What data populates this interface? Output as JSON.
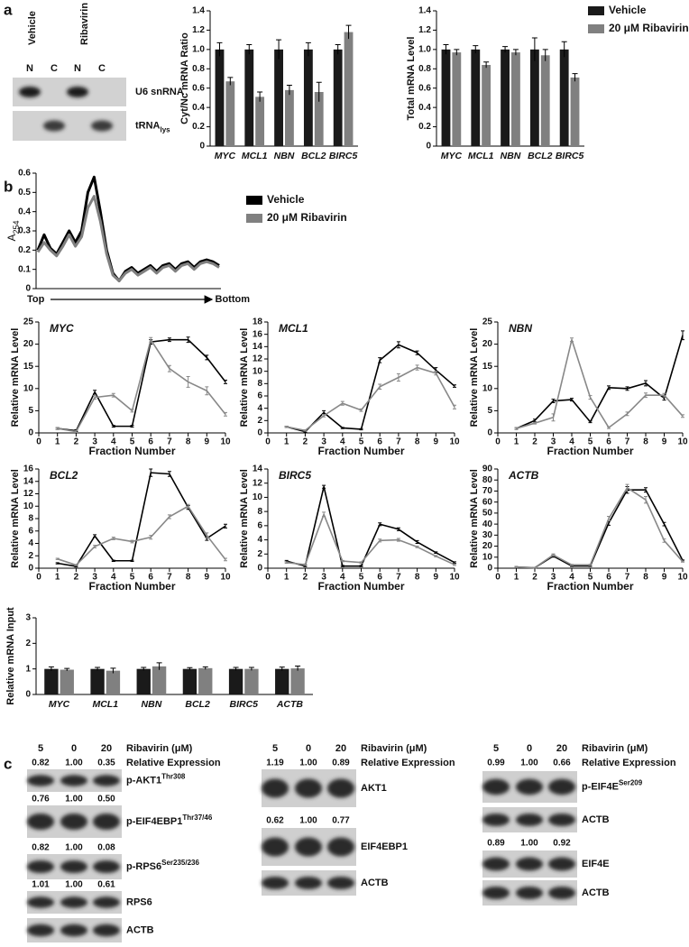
{
  "panel_labels": [
    "a",
    "b",
    "c"
  ],
  "blot_a": {
    "lane_groups": [
      "Vehicle",
      "Ribavirin"
    ],
    "lanes": [
      "N",
      "C",
      "N",
      "C"
    ],
    "rows": [
      {
        "label": "U6 snRNA"
      },
      {
        "label": "tRNA",
        "sub": "lys"
      }
    ]
  },
  "chart_data": [
    {
      "type": "bar",
      "ylabel": "Cyt/Nc mRNA Ratio",
      "categories": [
        "MYC",
        "MCL1",
        "NBN",
        "BCL2",
        "BIRC5"
      ],
      "series": [
        {
          "color": "#1a1a1a",
          "values": [
            1.0,
            1.0,
            1.0,
            1.0,
            1.0
          ],
          "errors": [
            0.07,
            0.05,
            0.1,
            0.07,
            0.05
          ]
        },
        {
          "color": "#808080",
          "values": [
            0.67,
            0.51,
            0.58,
            0.56,
            1.18
          ],
          "errors": [
            0.04,
            0.05,
            0.05,
            0.1,
            0.07
          ]
        }
      ],
      "ylim": [
        0,
        1.4
      ],
      "yticks": [
        0,
        0.2,
        0.4,
        0.6,
        0.8,
        {
          "value": 1,
          "label": "1.0"
        },
        1.2,
        1.4
      ]
    },
    {
      "type": "bar",
      "ylabel": "Total mRNA Level",
      "categories": [
        "MYC",
        "MCL1",
        "NBN",
        "BCL2",
        "BIRC5"
      ],
      "series": [
        {
          "name": "Vehicle",
          "color": "#1a1a1a",
          "values": [
            1.0,
            1.0,
            1.0,
            1.0,
            1.0
          ],
          "errors": [
            0.05,
            0.04,
            0.03,
            0.12,
            0.08
          ]
        },
        {
          "name": "20 μM Ribavirin",
          "color": "#808080",
          "values": [
            0.97,
            0.84,
            0.97,
            0.94,
            0.71
          ],
          "errors": [
            0.03,
            0.03,
            0.03,
            0.06,
            0.04
          ]
        }
      ],
      "ylim": [
        0,
        1.4
      ],
      "yticks": [
        0,
        0.2,
        0.4,
        0.6,
        0.8,
        {
          "value": 1,
          "label": "1.0"
        },
        1.2,
        1.4
      ],
      "legend": "upper right"
    },
    {
      "type": "line",
      "ylabel": "A",
      "ylabel_sub": "254",
      "xlabel_start": "Top",
      "xlabel_end": "Bottom",
      "categories": [
        null,
        null,
        null,
        null,
        null,
        null,
        null,
        null,
        null,
        null,
        null,
        null,
        null,
        null,
        null,
        null,
        null,
        null,
        null,
        null,
        null,
        null,
        null,
        null,
        null,
        null,
        null,
        null,
        null,
        null
      ],
      "series": [
        {
          "name": "Vehicle",
          "color": "#000000",
          "values": [
            0.2,
            0.28,
            0.21,
            0.18,
            0.24,
            0.3,
            0.24,
            0.3,
            0.5,
            0.58,
            0.4,
            0.2,
            0.08,
            0.04,
            0.09,
            0.11,
            0.08,
            0.1,
            0.12,
            0.09,
            0.12,
            0.13,
            0.1,
            0.13,
            0.14,
            0.11,
            0.14,
            0.15,
            0.14,
            0.12
          ]
        },
        {
          "name": "20 μM Ribavirin",
          "color": "#808080",
          "values": [
            0.19,
            0.24,
            0.2,
            0.17,
            0.22,
            0.28,
            0.22,
            0.27,
            0.42,
            0.48,
            0.35,
            0.18,
            0.07,
            0.04,
            0.08,
            0.1,
            0.07,
            0.09,
            0.11,
            0.08,
            0.11,
            0.12,
            0.09,
            0.12,
            0.13,
            0.1,
            0.13,
            0.14,
            0.13,
            0.11
          ]
        }
      ],
      "ylim": [
        0,
        0.6
      ],
      "yticks": [
        0,
        0.1,
        0.2,
        0.3,
        0.4,
        0.5,
        0.6
      ],
      "legend": "right"
    },
    {
      "type": "line",
      "title": "MYC",
      "xlabel": "Fraction Number",
      "ylabel": "Relative mRNA Level",
      "x": [
        1,
        2,
        3,
        4,
        5,
        6,
        7,
        8,
        9,
        10
      ],
      "xlim": [
        0,
        10
      ],
      "xticks": [
        0,
        1,
        2,
        3,
        4,
        5,
        6,
        7,
        8,
        9,
        10
      ],
      "ylim": [
        0,
        25
      ],
      "yticks": [
        0,
        5,
        10,
        15,
        20,
        25
      ],
      "series": [
        {
          "color": "#000000",
          "values": [
            1,
            0.5,
            9.2,
            1.5,
            1.5,
            20.5,
            21,
            21,
            17,
            11.5
          ],
          "errors": [
            0.2,
            0.2,
            0.4,
            0.2,
            0.2,
            0.5,
            0.4,
            0.6,
            0.5,
            0.4
          ]
        },
        {
          "color": "#888888",
          "values": [
            1,
            0.3,
            8,
            8.5,
            5,
            21,
            14.5,
            11.5,
            9.5,
            4.2
          ],
          "errors": [
            0.2,
            0.2,
            0.4,
            0.4,
            0.3,
            0.5,
            0.7,
            1.2,
            0.9,
            0.4
          ]
        }
      ]
    },
    {
      "type": "line",
      "title": "MCL1",
      "xlabel": "Fraction Number",
      "ylabel": "Relative mRNA Level",
      "x": [
        1,
        2,
        3,
        4,
        5,
        6,
        7,
        8,
        9,
        10
      ],
      "xlim": [
        0,
        10
      ],
      "xticks": [
        0,
        1,
        2,
        3,
        4,
        5,
        6,
        7,
        8,
        9,
        10
      ],
      "ylim": [
        0,
        18
      ],
      "yticks": [
        0,
        2,
        4,
        6,
        8,
        10,
        12,
        14,
        16,
        18
      ],
      "series": [
        {
          "color": "#000000",
          "values": [
            1,
            0.2,
            3.3,
            0.8,
            0.6,
            11.8,
            14.3,
            13,
            10.2,
            7.6
          ],
          "errors": [
            0.1,
            0.1,
            0.3,
            0.1,
            0.1,
            0.4,
            0.5,
            0.3,
            0.4,
            0.2
          ]
        },
        {
          "color": "#888888",
          "values": [
            1,
            0.4,
            2.8,
            4.8,
            3.7,
            7.5,
            9,
            10.6,
            9.7,
            4.2
          ],
          "errors": [
            0.1,
            0.1,
            0.2,
            0.3,
            0.2,
            0.4,
            0.6,
            0.4,
            0.3,
            0.3
          ]
        }
      ]
    },
    {
      "type": "line",
      "title": "NBN",
      "xlabel": "Fraction Number",
      "ylabel": "Relative mRNA Level",
      "x": [
        1,
        2,
        3,
        4,
        5,
        6,
        7,
        8,
        9,
        10
      ],
      "xlim": [
        0,
        10
      ],
      "xticks": [
        0,
        1,
        2,
        3,
        4,
        5,
        6,
        7,
        8,
        9,
        10
      ],
      "ylim": [
        0,
        25
      ],
      "yticks": [
        0,
        5,
        10,
        15,
        20,
        25
      ],
      "series": [
        {
          "color": "#000000",
          "values": [
            1,
            2.8,
            7.2,
            7.5,
            2.5,
            10.2,
            10,
            11.2,
            7.8,
            22
          ],
          "errors": [
            0.2,
            0.3,
            0.4,
            0.3,
            0.2,
            0.4,
            0.4,
            0.6,
            0.4,
            1.0
          ]
        },
        {
          "color": "#888888",
          "values": [
            1,
            2.2,
            3.5,
            21,
            8,
            1.2,
            4.3,
            8.5,
            8.5,
            3.8
          ],
          "errors": [
            0.2,
            0.2,
            0.8,
            0.4,
            0.4,
            0.2,
            0.4,
            0.5,
            0.4,
            0.3
          ]
        }
      ]
    },
    {
      "type": "line",
      "title": "BCL2",
      "xlabel": "Fraction Number",
      "ylabel": "Relative mRNA Level",
      "x": [
        1,
        2,
        3,
        4,
        5,
        6,
        7,
        8,
        9,
        10
      ],
      "xlim": [
        0,
        10
      ],
      "xticks": [
        0,
        1,
        2,
        3,
        4,
        5,
        6,
        7,
        8,
        9,
        10
      ],
      "ylim": [
        0,
        16
      ],
      "yticks": [
        0,
        2,
        4,
        6,
        8,
        10,
        12,
        14,
        16
      ],
      "series": [
        {
          "color": "#000000",
          "values": [
            0.8,
            0.3,
            5.2,
            1.2,
            1.2,
            15.4,
            15.2,
            9.8,
            4.8,
            6.8
          ],
          "errors": [
            0.1,
            0.1,
            0.2,
            0.1,
            0.1,
            0.6,
            0.4,
            0.3,
            0.3,
            0.3
          ]
        },
        {
          "color": "#888888",
          "values": [
            1.5,
            0.5,
            3.5,
            4.8,
            4.3,
            5,
            8.3,
            10,
            5.3,
            1.4
          ],
          "errors": [
            0.1,
            0.1,
            0.2,
            0.2,
            0.2,
            0.3,
            0.3,
            0.3,
            0.4,
            0.2
          ]
        }
      ]
    },
    {
      "type": "line",
      "title": "BIRC5",
      "xlabel": "Fraction Number",
      "ylabel": "Relative mRNA Level",
      "x": [
        1,
        2,
        3,
        4,
        5,
        6,
        7,
        8,
        9,
        10
      ],
      "xlim": [
        0,
        10
      ],
      "xticks": [
        0,
        1,
        2,
        3,
        4,
        5,
        6,
        7,
        8,
        9,
        10
      ],
      "ylim": [
        0,
        14
      ],
      "yticks": [
        0,
        2,
        4,
        6,
        8,
        10,
        12,
        14
      ],
      "series": [
        {
          "color": "#000000",
          "values": [
            1,
            0.3,
            11.5,
            0.3,
            0.3,
            6.2,
            5.5,
            3.7,
            2.2,
            0.8
          ],
          "errors": [
            0.1,
            0.1,
            0.2,
            0.1,
            0.1,
            0.2,
            0.2,
            0.2,
            0.1,
            0.1
          ]
        },
        {
          "color": "#888888",
          "values": [
            0.8,
            0.5,
            7.6,
            1,
            0.8,
            3.9,
            4,
            3,
            1.7,
            0.5
          ],
          "errors": [
            0.1,
            0.1,
            0.3,
            0.1,
            0.1,
            0.2,
            0.2,
            0.1,
            0.1,
            0.1
          ]
        }
      ]
    },
    {
      "type": "line",
      "title": "ACTB",
      "xlabel": "Fraction Number",
      "ylabel": "Relative mRNA Level",
      "x": [
        1,
        2,
        3,
        4,
        5,
        6,
        7,
        8,
        9,
        10
      ],
      "xlim": [
        0,
        10
      ],
      "xticks": [
        0,
        1,
        2,
        3,
        4,
        5,
        6,
        7,
        8,
        9,
        10
      ],
      "ylim": [
        0,
        90
      ],
      "yticks": [
        0,
        10,
        20,
        30,
        40,
        50,
        60,
        70,
        80,
        90
      ],
      "series": [
        {
          "color": "#000000",
          "values": [
            1,
            0.5,
            11,
            2,
            2,
            41,
            71,
            71,
            40,
            7
          ],
          "errors": [
            0.5,
            0.3,
            1,
            0.5,
            0.5,
            2,
            3,
            2,
            1.5,
            0.5
          ]
        },
        {
          "color": "#888888",
          "values": [
            1,
            0.5,
            12,
            3,
            3,
            45,
            73,
            62,
            25,
            6
          ],
          "errors": [
            0.5,
            0.3,
            1,
            0.5,
            0.5,
            2,
            3,
            3,
            1.5,
            0.5
          ]
        }
      ]
    },
    {
      "type": "bar",
      "ylabel": "Relative mRNA Input",
      "categories": [
        "MYC",
        "MCL1",
        "NBN",
        "BCL2",
        "BIRC5",
        "ACTB"
      ],
      "series": [
        {
          "color": "#1a1a1a",
          "values": [
            1,
            1,
            1,
            1,
            1,
            1
          ],
          "errors": [
            0.08,
            0.06,
            0.06,
            0.05,
            0.06,
            0.07
          ]
        },
        {
          "color": "#808080",
          "values": [
            0.97,
            0.93,
            1.1,
            1.03,
            1.0,
            1.02
          ],
          "errors": [
            0.05,
            0.1,
            0.14,
            0.05,
            0.06,
            0.09
          ]
        }
      ],
      "ylim": [
        0,
        3
      ],
      "yticks": [
        0,
        1,
        2,
        3
      ]
    }
  ],
  "blots_c": [
    {
      "lanes": [
        "5",
        "0",
        "20"
      ],
      "lane_title": "Ribavirin (μM)",
      "expression_title": "Relative Expression",
      "rows": [
        {
          "label": "p-AKT1",
          "sup": "Thr308",
          "expression": [
            "0.82",
            "1.00",
            "0.35"
          ]
        },
        {
          "label": "p-EIF4EBP1",
          "sup": "Thr37/46",
          "expression": [
            "0.76",
            "1.00",
            "0.50"
          ]
        },
        {
          "label": "p-RPS6",
          "sup": "Ser235/236",
          "expression": [
            "0.82",
            "1.00",
            "0.08"
          ]
        },
        {
          "label": "RPS6",
          "expression": [
            "1.01",
            "1.00",
            "0.61"
          ]
        },
        {
          "label": "ACTB"
        }
      ]
    },
    {
      "lanes": [
        "5",
        "0",
        "20"
      ],
      "lane_title": "Ribavirin (μM)",
      "expression_title": "Relative Expression",
      "rows": [
        {
          "label": "AKT1",
          "expression": [
            "1.19",
            "1.00",
            "0.89"
          ]
        },
        {
          "label": "EIF4EBP1",
          "expression": [
            "0.62",
            "1.00",
            "0.77"
          ]
        },
        {
          "label": "ACTB"
        }
      ]
    },
    {
      "lanes": [
        "5",
        "0",
        "20"
      ],
      "lane_title": "Ribavirin (μM)",
      "expression_title": "Relative Expression",
      "rows": [
        {
          "label": "p-EIF4E",
          "sup": "Ser209",
          "expression": [
            "0.99",
            "1.00",
            "0.66"
          ]
        },
        {
          "label": "ACTB"
        },
        {
          "label": "EIF4E",
          "expression": [
            "0.89",
            "1.00",
            "0.92"
          ]
        },
        {
          "label": "ACTB"
        }
      ]
    }
  ]
}
